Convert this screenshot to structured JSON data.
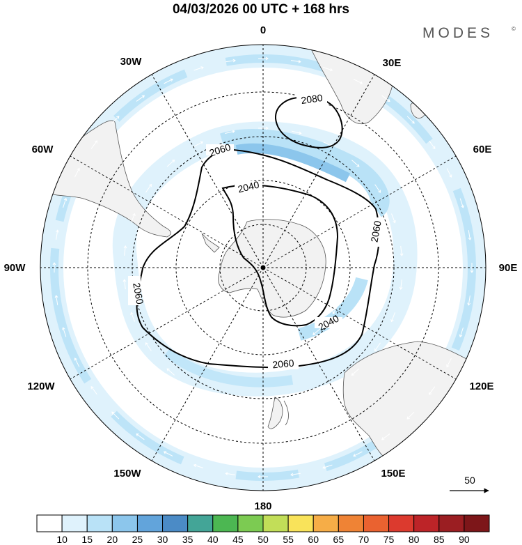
{
  "title": "04/03/2026  00 UTC  + 168 hrs",
  "brand": "MODES",
  "brand_mark": "©",
  "longitude_labels": [
    "0",
    "30E",
    "60E",
    "90E",
    "120E",
    "150E",
    "180",
    "150W",
    "120W",
    "90W",
    "60W",
    "30W"
  ],
  "contours": [
    {
      "value": "2080",
      "label": "2080"
    },
    {
      "value": "2060",
      "label": "2060"
    },
    {
      "value": "2040",
      "label": "2040"
    }
  ],
  "reference_vector": {
    "label": "50"
  },
  "colorbar": {
    "labels": [
      "10",
      "15",
      "20",
      "25",
      "30",
      "35",
      "40",
      "45",
      "50",
      "55",
      "60",
      "65",
      "70",
      "75",
      "80",
      "85",
      "90"
    ],
    "colors": [
      "#ffffff",
      "#dff2fc",
      "#b9e2f7",
      "#8cc6ec",
      "#62a4db",
      "#4b8bc6",
      "#43a597",
      "#4cb752",
      "#7ccb52",
      "#c2de58",
      "#f9e35a",
      "#f6ad47",
      "#ef8335",
      "#ea6230",
      "#dc3a2e",
      "#bd2428",
      "#9b1e22",
      "#7d1619"
    ]
  },
  "colors": {
    "land": "#f2f2f2",
    "wind_low": "#dff2fc",
    "wind_mid": "#b9e2f7",
    "wind_high": "#8cc6ec"
  }
}
